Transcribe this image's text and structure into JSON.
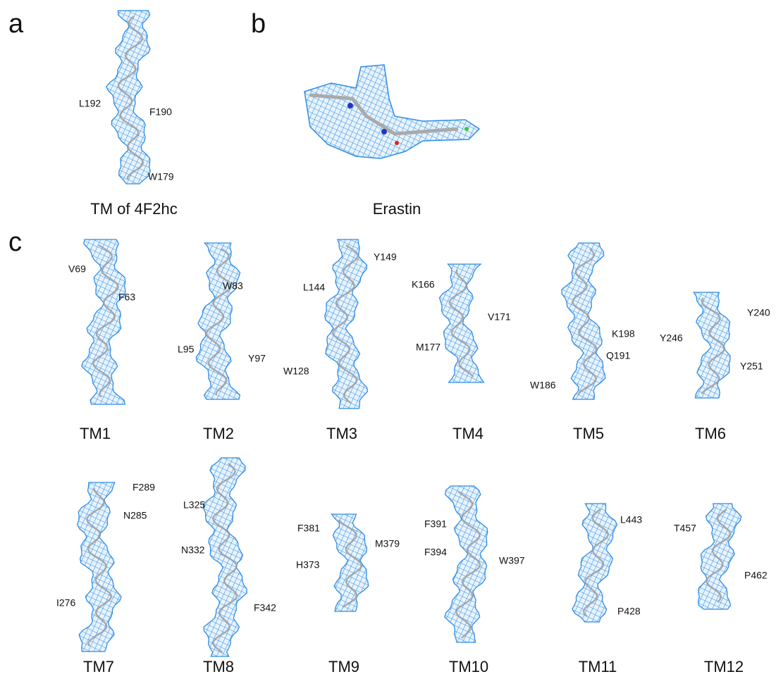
{
  "panels": {
    "a": {
      "letter": "a",
      "caption": "TM of 4F2hc",
      "residues": [
        "L192",
        "F190",
        "W179"
      ]
    },
    "b": {
      "letter": "b",
      "caption": "Erastin"
    },
    "c": {
      "letter": "c",
      "helices": [
        {
          "caption": "TM1",
          "residues": [
            "V69",
            "F63"
          ]
        },
        {
          "caption": "TM2",
          "residues": [
            "W83",
            "L95",
            "Y97"
          ]
        },
        {
          "caption": "TM3",
          "residues": [
            "Y149",
            "L144",
            "W128"
          ]
        },
        {
          "caption": "TM4",
          "residues": [
            "K166",
            "V171",
            "M177"
          ]
        },
        {
          "caption": "TM5",
          "residues": [
            "K198",
            "Q191",
            "W186"
          ]
        },
        {
          "caption": "TM6",
          "residues": [
            "Y240",
            "Y246",
            "Y251"
          ]
        },
        {
          "caption": "TM7",
          "residues": [
            "F289",
            "N285",
            "I276"
          ]
        },
        {
          "caption": "TM8",
          "residues": [
            "L325",
            "N332",
            "F342"
          ]
        },
        {
          "caption": "TM9",
          "residues": [
            "F381",
            "M379",
            "H373"
          ]
        },
        {
          "caption": "TM10",
          "residues": [
            "F391",
            "F394",
            "W397"
          ]
        },
        {
          "caption": "TM11",
          "residues": [
            "L443",
            "P428"
          ]
        },
        {
          "caption": "TM12",
          "residues": [
            "T457",
            "P462"
          ]
        }
      ]
    }
  }
}
